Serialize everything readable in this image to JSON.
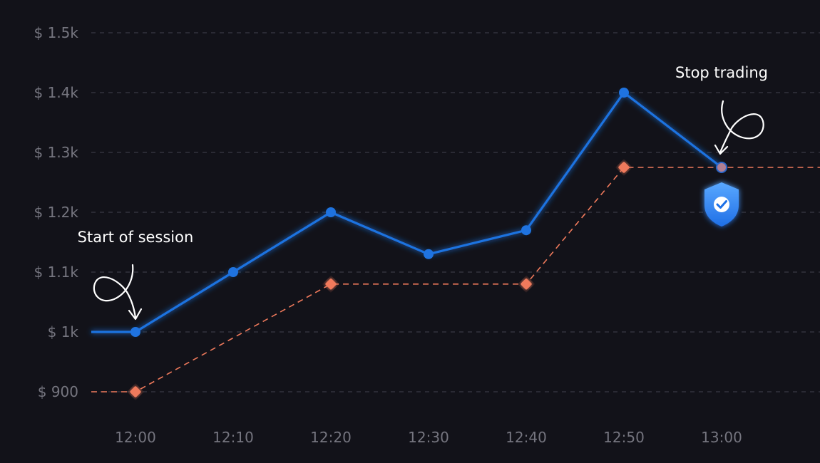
{
  "chart_data": {
    "type": "line",
    "title": "",
    "xlabel": "",
    "ylabel": "",
    "categories": [
      "12:00",
      "12:10",
      "12:20",
      "12:30",
      "12:40",
      "12:50",
      "13:00"
    ],
    "y_ticks": [
      "$ 1.5k",
      "$ 1.4k",
      "$ 1.3k",
      "$ 1.2k",
      "$ 1.1k",
      "$ 1k",
      "$ 900"
    ],
    "y_tick_values": [
      1500,
      1400,
      1300,
      1200,
      1100,
      1000,
      900
    ],
    "ylim": [
      900,
      1500
    ],
    "grid": true,
    "legend": "none",
    "series": [
      {
        "style": "solid",
        "color": "#1f73e0",
        "values": [
          1000,
          1100,
          1200,
          1130,
          1170,
          1400,
          1275
        ],
        "lead_in_value": 1000
      },
      {
        "style": "dashed",
        "color": "#f07a5c",
        "values": [
          900,
          null,
          1080,
          null,
          1080,
          1275,
          null
        ],
        "lead_in_value": 900,
        "extends_right_value": 1275
      }
    ],
    "annotations": [
      {
        "text": "Start of session",
        "at": "12:00"
      },
      {
        "text": "Stop trading",
        "at": "13:00",
        "icon": "shield-check-icon"
      }
    ]
  }
}
